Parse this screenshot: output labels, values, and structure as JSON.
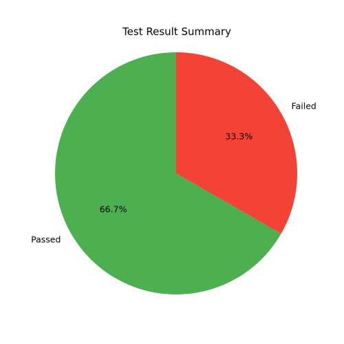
{
  "chart_data": {
    "type": "pie",
    "title": "Test Result Summary",
    "slices": [
      {
        "label": "Passed",
        "value": 66.7,
        "percent_label": "66.7%",
        "color": "#4caf50"
      },
      {
        "label": "Failed",
        "value": 33.3,
        "percent_label": "33.3%",
        "color": "#f44336"
      }
    ],
    "start_angle_deg": 90,
    "direction": "counterclockwise",
    "legend": "none"
  }
}
